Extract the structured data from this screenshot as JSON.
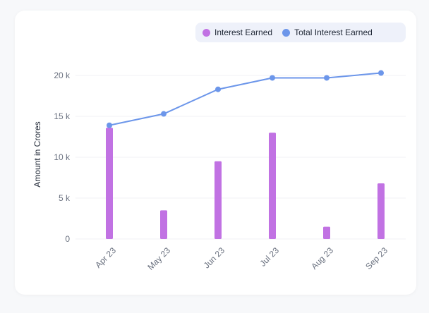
{
  "legend": {
    "items": [
      {
        "label": "Interest Earned",
        "color": "#c172e3"
      },
      {
        "label": "Total Interest Earned",
        "color": "#6c96ea"
      }
    ]
  },
  "chart_data": {
    "type": "bar",
    "categories": [
      "Apr 23",
      "May 23",
      "Jun 23",
      "Jul 23",
      "Aug 23",
      "Sep 23"
    ],
    "ylabel": "Amount in Crores",
    "ylim": [
      0,
      20000
    ],
    "yticks": [
      {
        "value": 0,
        "label": "0"
      },
      {
        "value": 5000,
        "label": "5 k"
      },
      {
        "value": 10000,
        "label": "10 k"
      },
      {
        "value": 15000,
        "label": "15 k"
      },
      {
        "value": 20000,
        "label": "20 k"
      }
    ],
    "grid": true,
    "legend_position": "top-right",
    "series": [
      {
        "name": "Interest Earned",
        "type": "bar",
        "color": "#c172e3",
        "values": [
          13600,
          3500,
          9500,
          13000,
          1500,
          6800
        ]
      },
      {
        "name": "Total Interest Earned",
        "type": "line",
        "color": "#6c96ea",
        "values": [
          13900,
          15300,
          18300,
          19700,
          19700,
          20300
        ]
      }
    ]
  }
}
